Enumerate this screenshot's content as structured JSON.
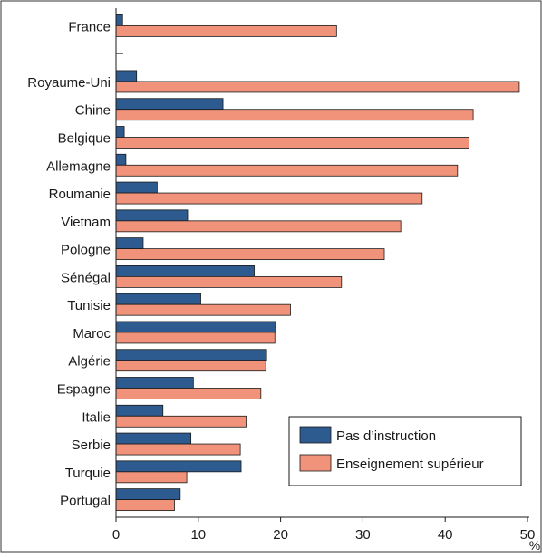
{
  "chart_data": {
    "type": "bar",
    "orientation": "horizontal",
    "categories": [
      "France",
      "",
      "Royaume-Uni",
      "Chine",
      "Belgique",
      "Allemagne",
      "Roumanie",
      "Vietnam",
      "Pologne",
      "Sénégal",
      "Tunisie",
      "Maroc",
      "Algérie",
      "Espagne",
      "Italie",
      "Serbie",
      "Turquie",
      "Portugal"
    ],
    "series": [
      {
        "name": "Pas d’instruction",
        "color": "#2e5b8f",
        "values": [
          0.8,
          null,
          2.5,
          13.0,
          1.0,
          1.2,
          5.0,
          8.7,
          3.3,
          16.8,
          10.3,
          19.4,
          18.3,
          9.4,
          5.7,
          9.1,
          15.2,
          7.8
        ]
      },
      {
        "name": "Enseignement supérieur",
        "color": "#f0937a",
        "values": [
          26.8,
          null,
          49.0,
          43.4,
          42.9,
          41.5,
          37.2,
          34.6,
          32.6,
          27.4,
          21.2,
          19.3,
          18.2,
          17.6,
          15.8,
          15.1,
          8.6,
          7.1
        ]
      }
    ],
    "xlim": [
      0,
      50
    ],
    "xticks": [
      "0",
      "10",
      "20",
      "30",
      "40",
      "50"
    ],
    "xunit": "%",
    "legend_position": "bottom-right",
    "grid": false
  }
}
